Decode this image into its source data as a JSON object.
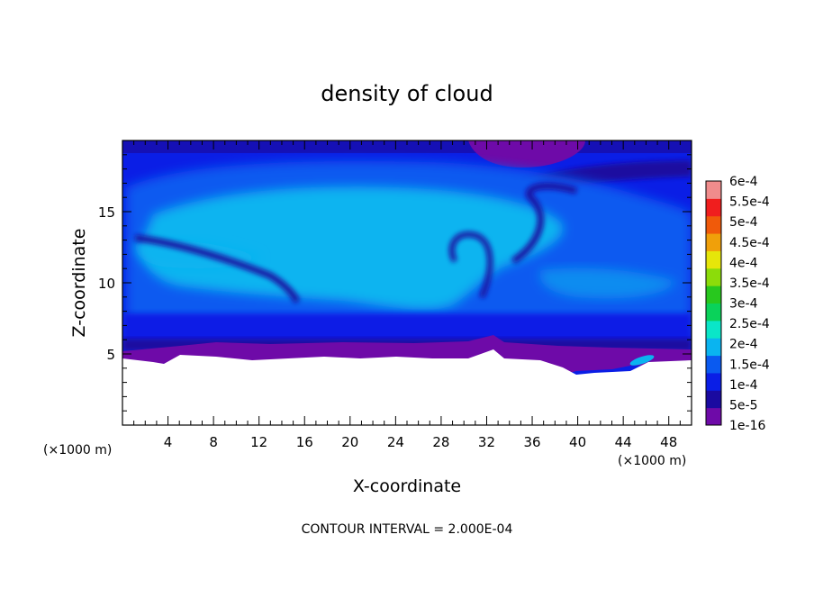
{
  "chart_data": {
    "type": "heatmap",
    "title": "density of cloud",
    "xlabel": "X-coordinate",
    "ylabel": "Z-coordinate",
    "x_unit_left": "(×1000 m)",
    "x_unit_right": "(×1000 m)",
    "xlim": [
      0,
      50
    ],
    "ylim": [
      0,
      20
    ],
    "x_ticks": [
      4,
      8,
      12,
      16,
      20,
      24,
      28,
      32,
      36,
      40,
      44,
      48
    ],
    "y_ticks": [
      5,
      10,
      15
    ],
    "footer": "CONTOUR INTERVAL = 2.000E-04",
    "colorbar": {
      "labels": [
        "1e-16",
        "5e-5",
        "1e-4",
        "1.5e-4",
        "2e-4",
        "2.5e-4",
        "3e-4",
        "3.5e-4",
        "4e-4",
        "4.5e-4",
        "5e-4",
        "5.5e-4",
        "6e-4"
      ],
      "levels": [
        1e-16,
        5e-05,
        0.0001,
        0.00015,
        0.0002,
        0.00025,
        0.0003,
        0.00035,
        0.0004,
        0.00045,
        0.0005,
        0.00055,
        0.0006
      ],
      "colors": [
        "#6e0aa8",
        "#1a0aa0",
        "#0a1ee6",
        "#0a5af0",
        "#0ab4f0",
        "#0ae6c8",
        "#0ad25a",
        "#28c81e",
        "#8cdc0a",
        "#e6e60a",
        "#f0a00a",
        "#f05a0a",
        "#f01e1e",
        "#f08c8c"
      ]
    }
  }
}
